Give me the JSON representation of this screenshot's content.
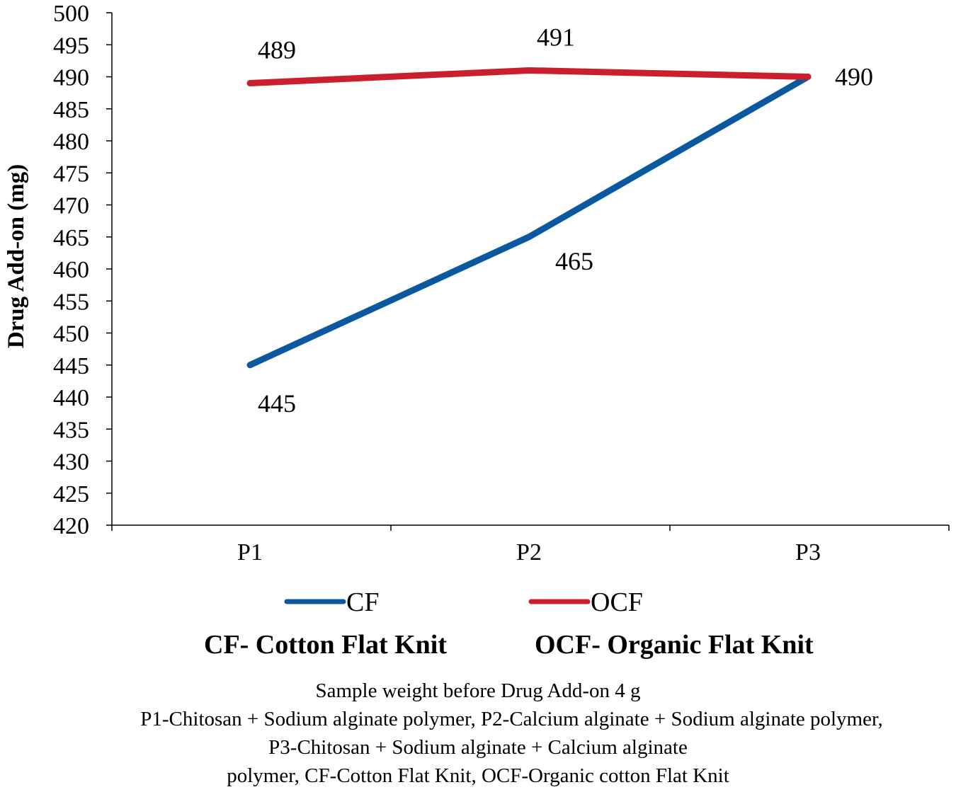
{
  "chart_data": {
    "type": "line",
    "title": "",
    "xlabel": "",
    "ylabel": "Drug Add-on (mg)",
    "categories": [
      "P1",
      "P2",
      "P3"
    ],
    "ylim": [
      420,
      500
    ],
    "ytick_step": 5,
    "grid": false,
    "series": [
      {
        "name": "CF",
        "values": [
          445,
          465,
          490
        ],
        "color": "#0a58a0",
        "label_positions": [
          "below",
          "below-right",
          "right"
        ]
      },
      {
        "name": "OCF",
        "values": [
          489,
          491,
          490
        ],
        "color": "#cc1f2e",
        "label_positions": [
          "above",
          "above",
          "none"
        ]
      }
    ],
    "legend_placement": "bottom",
    "abbreviations": [
      "CF- Cotton Flat Knit",
      "OCF- Organic Flat Knit"
    ]
  },
  "footnote": [
    "Sample weight before Drug Add-on 4 g",
    "P1-Chitosan + Sodium alginate polymer, P2-Calcium alginate + Sodium alginate polymer,",
    "P3-Chitosan + Sodium alginate + Calcium alginate",
    "polymer, CF-Cotton Flat Knit, OCF-Organic cotton Flat Knit"
  ]
}
